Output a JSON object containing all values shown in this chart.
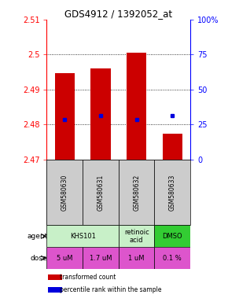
{
  "title": "GDS4912 / 1392052_at",
  "samples": [
    "GSM580630",
    "GSM580631",
    "GSM580632",
    "GSM580633"
  ],
  "bar_bottoms": [
    2.47,
    2.47,
    2.47,
    2.47
  ],
  "bar_tops": [
    2.4948,
    2.496,
    2.5005,
    2.4775
  ],
  "percentile_values": [
    2.4815,
    2.4825,
    2.4815,
    2.4825
  ],
  "ylim": [
    2.47,
    2.51
  ],
  "yticks": [
    2.47,
    2.48,
    2.49,
    2.5,
    2.51
  ],
  "ytick_labels": [
    "2.47",
    "2.48",
    "2.49",
    "2.5",
    "2.51"
  ],
  "right_yticks_pct": [
    0,
    25,
    50,
    75,
    100
  ],
  "right_ytick_labels": [
    "0",
    "25",
    "50",
    "75",
    "100%"
  ],
  "bar_color": "#cc0000",
  "percentile_color": "#0000dd",
  "agent_data": [
    {
      "c0": 0,
      "c1": 1,
      "label": "KHS101",
      "color": "#c8f0c8"
    },
    {
      "c0": 2,
      "c1": 2,
      "label": "retinoic\nacid",
      "color": "#c8f0c8"
    },
    {
      "c0": 3,
      "c1": 3,
      "label": "DMSO",
      "color": "#33cc33"
    }
  ],
  "doses": [
    "5 uM",
    "1.7 uM",
    "1 uM",
    "0.1 %"
  ],
  "dose_colors": [
    "#ee77ee",
    "#ee77ee",
    "#ee77ee",
    "#ee77ee"
  ],
  "sample_bg": "#cccccc",
  "dose_bg": "#dd55dd"
}
